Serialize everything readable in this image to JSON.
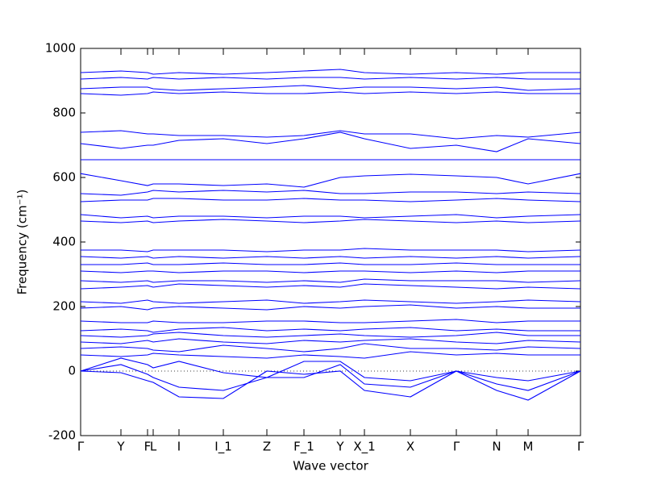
{
  "chart_data": {
    "type": "line",
    "xlabel": "Wave vector",
    "ylabel": "Frequency (cm⁻¹)",
    "x": [
      0,
      0.5,
      0.83,
      0.9,
      1.22,
      1.77,
      2.31,
      2.77,
      3.22,
      3.52,
      4.09,
      4.66,
      5.16,
      5.55,
      6.2
    ],
    "xlim": [
      0,
      6.2
    ],
    "xticks": [
      {
        "value": 0,
        "label": "Γ"
      },
      {
        "value": 0.5,
        "label": "Y"
      },
      {
        "value": 0.83,
        "label": "F"
      },
      {
        "value": 0.9,
        "label": "L"
      },
      {
        "value": 1.22,
        "label": "I"
      },
      {
        "value": 1.77,
        "label": "I_1"
      },
      {
        "value": 2.31,
        "label": "Z"
      },
      {
        "value": 2.77,
        "label": "F_1"
      },
      {
        "value": 3.22,
        "label": "Y"
      },
      {
        "value": 3.52,
        "label": "X_1"
      },
      {
        "value": 4.09,
        "label": "X"
      },
      {
        "value": 4.66,
        "label": "Γ"
      },
      {
        "value": 5.16,
        "label": "N"
      },
      {
        "value": 5.55,
        "label": "M"
      },
      {
        "value": 6.2,
        "label": "Γ"
      }
    ],
    "ylim": [
      -200,
      1000
    ],
    "yticks": [
      -200,
      0,
      200,
      400,
      600,
      800,
      1000
    ],
    "zero_line": true,
    "series": [
      {
        "color": "#0000ff",
        "values": [
          0,
          -5,
          -30,
          -35,
          -80,
          -85,
          0,
          -10,
          0,
          -60,
          -80,
          0,
          -60,
          -90,
          0
        ]
      },
      {
        "color": "#0000ff",
        "values": [
          0,
          20,
          -10,
          -20,
          -50,
          -60,
          -20,
          -20,
          20,
          -40,
          -50,
          0,
          -40,
          -60,
          0
        ]
      },
      {
        "color": "#0000ff",
        "values": [
          0,
          40,
          20,
          10,
          30,
          -5,
          -20,
          30,
          30,
          -20,
          -30,
          0,
          -20,
          -30,
          0
        ]
      },
      {
        "color": "#0000ff",
        "values": [
          50,
          45,
          50,
          55,
          50,
          45,
          40,
          50,
          45,
          40,
          60,
          50,
          55,
          50,
          50
        ]
      },
      {
        "color": "#0000ff",
        "values": [
          70,
          75,
          70,
          65,
          60,
          80,
          70,
          60,
          70,
          85,
          70,
          70,
          65,
          75,
          70
        ]
      },
      {
        "color": "#0000ff",
        "values": [
          90,
          85,
          95,
          90,
          100,
          90,
          85,
          95,
          90,
          95,
          100,
          90,
          85,
          95,
          90
        ]
      },
      {
        "color": "#0000ff",
        "values": [
          110,
          105,
          110,
          115,
          120,
          110,
          105,
          110,
          115,
          110,
          105,
          110,
          120,
          110,
          110
        ]
      },
      {
        "color": "#0000ff",
        "values": [
          125,
          130,
          125,
          120,
          130,
          135,
          125,
          130,
          125,
          130,
          135,
          125,
          130,
          125,
          125
        ]
      },
      {
        "color": "#0000ff",
        "values": [
          155,
          150,
          150,
          155,
          150,
          150,
          155,
          155,
          150,
          150,
          155,
          160,
          150,
          155,
          155
        ]
      },
      {
        "color": "#0000ff",
        "values": [
          195,
          200,
          190,
          195,
          200,
          195,
          190,
          200,
          195,
          200,
          205,
          195,
          200,
          195,
          195
        ]
      },
      {
        "color": "#0000ff",
        "values": [
          215,
          210,
          220,
          215,
          210,
          215,
          220,
          210,
          215,
          220,
          215,
          210,
          215,
          220,
          215
        ]
      },
      {
        "color": "#0000ff",
        "values": [
          255,
          260,
          265,
          260,
          270,
          265,
          260,
          265,
          260,
          270,
          265,
          260,
          255,
          260,
          255
        ]
      },
      {
        "color": "#0000ff",
        "values": [
          280,
          275,
          280,
          275,
          280,
          280,
          275,
          280,
          275,
          285,
          280,
          280,
          280,
          275,
          280
        ]
      },
      {
        "color": "#0000ff",
        "values": [
          310,
          305,
          310,
          310,
          305,
          310,
          310,
          305,
          310,
          310,
          305,
          310,
          305,
          310,
          310
        ]
      },
      {
        "color": "#0000ff",
        "values": [
          330,
          330,
          335,
          330,
          330,
          335,
          330,
          330,
          335,
          330,
          330,
          335,
          330,
          330,
          330
        ]
      },
      {
        "color": "#0000ff",
        "values": [
          355,
          350,
          355,
          350,
          355,
          350,
          355,
          350,
          355,
          350,
          355,
          350,
          355,
          350,
          355
        ]
      },
      {
        "color": "#0000ff",
        "values": [
          375,
          375,
          370,
          375,
          375,
          375,
          370,
          375,
          375,
          380,
          375,
          375,
          375,
          370,
          375
        ]
      },
      {
        "color": "#0000ff",
        "values": [
          465,
          460,
          465,
          460,
          465,
          470,
          465,
          460,
          465,
          470,
          465,
          460,
          465,
          460,
          465
        ]
      },
      {
        "color": "#0000ff",
        "values": [
          485,
          475,
          480,
          475,
          480,
          480,
          475,
          480,
          480,
          475,
          480,
          485,
          475,
          480,
          485
        ]
      },
      {
        "color": "#0000ff",
        "values": [
          525,
          530,
          530,
          535,
          535,
          530,
          530,
          535,
          530,
          530,
          525,
          530,
          535,
          530,
          525
        ]
      },
      {
        "color": "#0000ff",
        "values": [
          550,
          545,
          555,
          560,
          555,
          560,
          555,
          560,
          550,
          550,
          555,
          555,
          550,
          555,
          550
        ]
      },
      {
        "color": "#0000ff",
        "values": [
          612,
          590,
          575,
          580,
          580,
          575,
          580,
          570,
          600,
          605,
          610,
          605,
          600,
          580,
          612
        ]
      },
      {
        "color": "#0000ff",
        "values": [
          655,
          655,
          655,
          655,
          655,
          655,
          655,
          655,
          655,
          655,
          655,
          655,
          655,
          655,
          655
        ]
      },
      {
        "color": "#0000ff",
        "values": [
          705,
          690,
          700,
          700,
          715,
          720,
          705,
          720,
          740,
          720,
          690,
          700,
          680,
          720,
          705
        ]
      },
      {
        "color": "#0000ff",
        "values": [
          740,
          745,
          735,
          735,
          730,
          730,
          725,
          730,
          745,
          735,
          735,
          720,
          730,
          725,
          740
        ]
      },
      {
        "color": "#0000ff",
        "values": [
          860,
          855,
          860,
          865,
          860,
          865,
          860,
          860,
          865,
          860,
          865,
          860,
          865,
          860,
          860
        ]
      },
      {
        "color": "#0000ff",
        "values": [
          875,
          880,
          880,
          875,
          870,
          875,
          880,
          885,
          875,
          880,
          880,
          875,
          880,
          870,
          875
        ]
      },
      {
        "color": "#0000ff",
        "values": [
          905,
          910,
          905,
          910,
          905,
          910,
          905,
          910,
          910,
          905,
          910,
          905,
          910,
          905,
          905
        ]
      },
      {
        "color": "#0000ff",
        "values": [
          925,
          930,
          925,
          920,
          925,
          920,
          925,
          930,
          935,
          925,
          920,
          925,
          920,
          925,
          925
        ]
      }
    ]
  }
}
